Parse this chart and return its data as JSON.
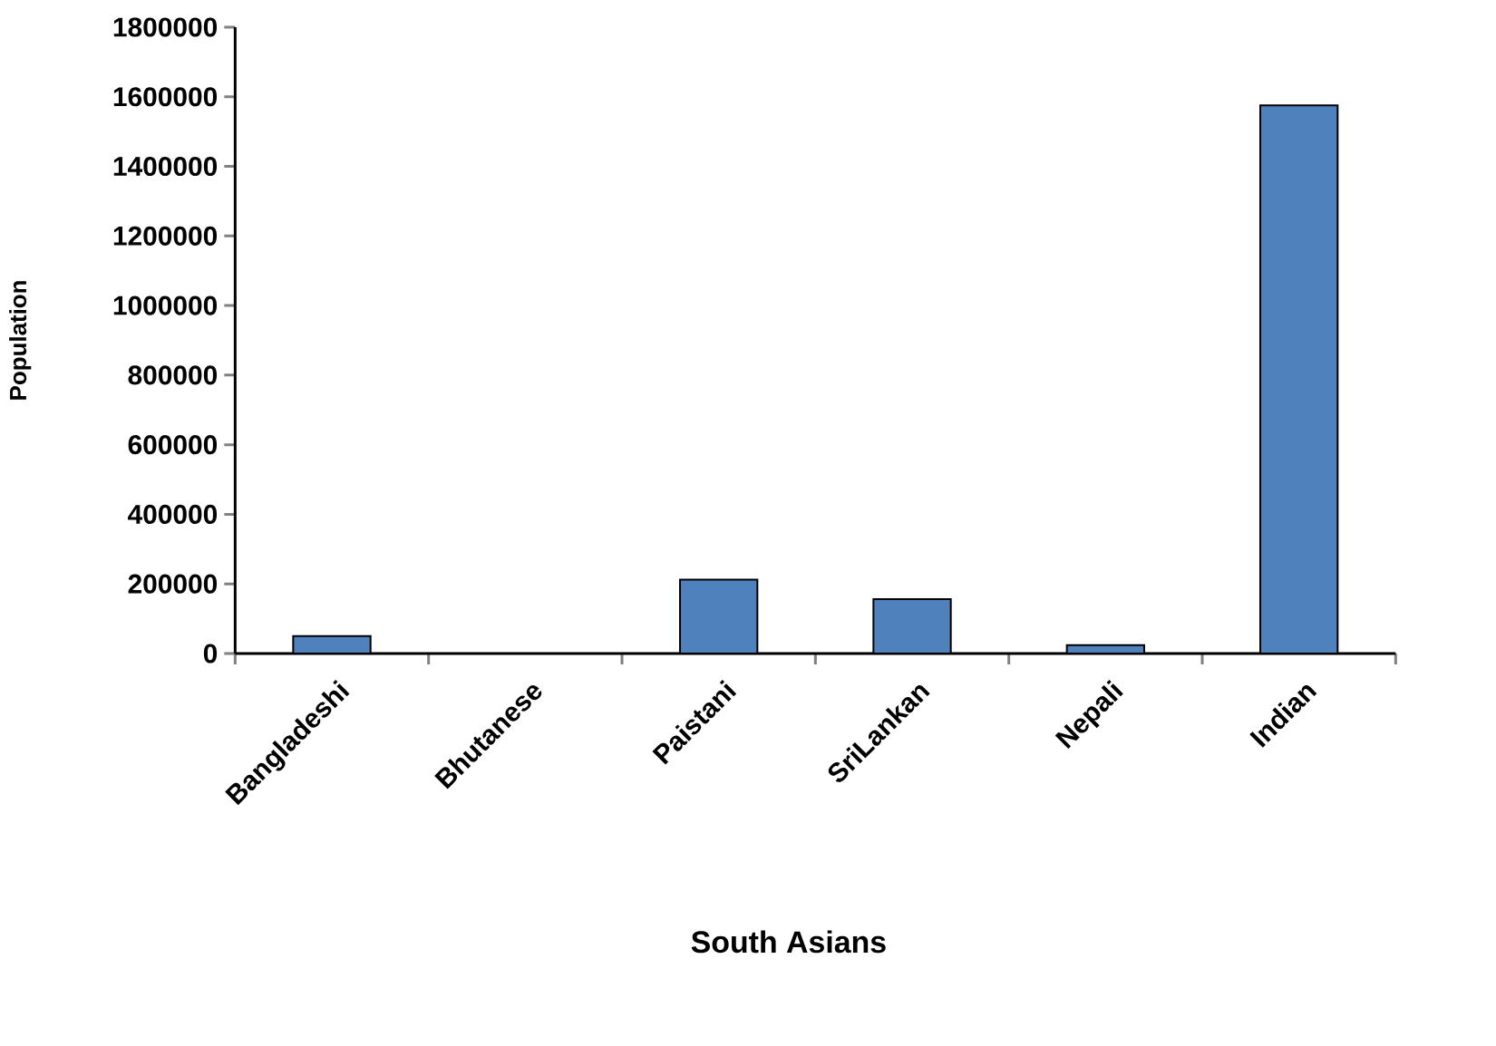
{
  "chart_data": {
    "type": "bar",
    "xlabel": "South Asians",
    "ylabel": "Population",
    "categories": [
      "Bangladeshi",
      "Bhutanese",
      "Paistani",
      "SriLankan",
      "Nepali",
      "Indian"
    ],
    "values": [
      50000,
      null,
      212000,
      156000,
      24000,
      1575000
    ],
    "color": "#4f81bd",
    "ylim": [
      0,
      1800000
    ],
    "yticks": [
      0,
      200000,
      400000,
      600000,
      800000,
      1000000,
      1200000,
      1400000,
      1600000,
      1800000
    ],
    "grid": false
  }
}
